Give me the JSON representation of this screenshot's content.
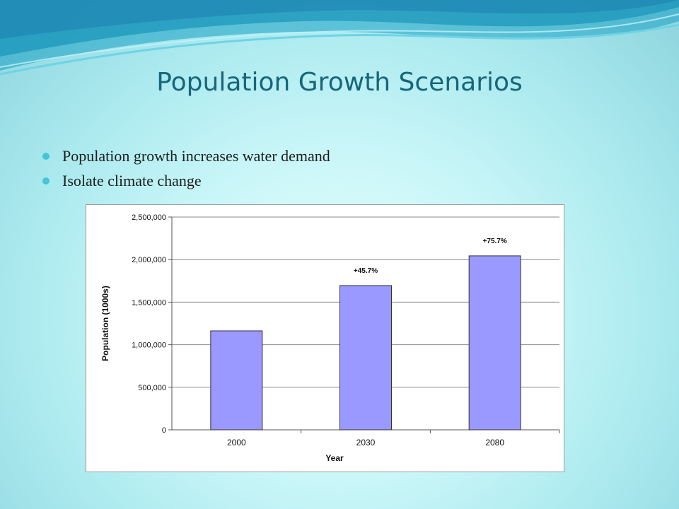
{
  "slide": {
    "title": "Population Growth Scenarios",
    "bullets": [
      "Population growth increases water demand",
      "Isolate climate change"
    ]
  },
  "colors": {
    "title": "#17667a",
    "bullet": "#46c5d6",
    "bar_fill": "#9999ff",
    "bar_stroke": "#333333"
  },
  "chart_data": {
    "type": "bar",
    "categories": [
      "2000",
      "2030",
      "2080"
    ],
    "values": [
      1163000,
      1695000,
      2044000
    ],
    "data_labels": [
      "",
      "+45.7%",
      "+75.7%"
    ],
    "title": "",
    "xlabel": "Year",
    "ylabel": "Population (1000s)",
    "ylim": [
      0,
      2500000
    ],
    "yticks": [
      "0",
      "500,000",
      "1,000,000",
      "1,500,000",
      "2,000,000",
      "2,500,000"
    ],
    "grid": true,
    "legend": "none"
  }
}
